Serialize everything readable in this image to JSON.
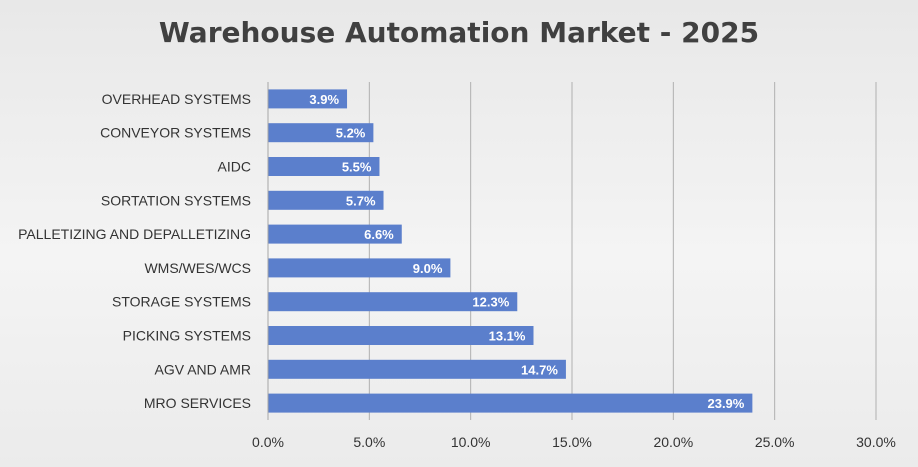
{
  "chart_data": {
    "type": "bar",
    "orientation": "horizontal",
    "title": "Warehouse Automation Market - 2025",
    "categories": [
      "OVERHEAD SYSTEMS",
      "CONVEYOR SYSTEMS",
      "AIDC",
      "SORTATION SYSTEMS",
      "PALLETIZING AND DEPALLETIZING",
      "WMS/WES/WCS",
      "STORAGE SYSTEMS",
      "PICKING SYSTEMS",
      "AGV AND AMR",
      "MRO SERVICES"
    ],
    "values": [
      3.9,
      5.2,
      5.5,
      5.7,
      6.6,
      9.0,
      12.3,
      13.1,
      14.7,
      23.9
    ],
    "data_labels": [
      "3.9%",
      "5.2%",
      "5.5%",
      "5.7%",
      "6.6%",
      "9.0%",
      "12.3%",
      "13.1%",
      "14.7%",
      "23.9%"
    ],
    "xlim": [
      0,
      30
    ],
    "x_ticks": [
      0,
      5,
      10,
      15,
      20,
      25,
      30
    ],
    "x_tick_labels": [
      "0.0%",
      "5.0%",
      "10.0%",
      "15.0%",
      "20.0%",
      "25.0%",
      "30.0%"
    ],
    "xlabel": "",
    "ylabel": "",
    "grid": "vertical",
    "legend": "none",
    "bar_color": "#5b7fcc",
    "gridline_color": "#b0b0b0",
    "text_color": "#333333"
  }
}
